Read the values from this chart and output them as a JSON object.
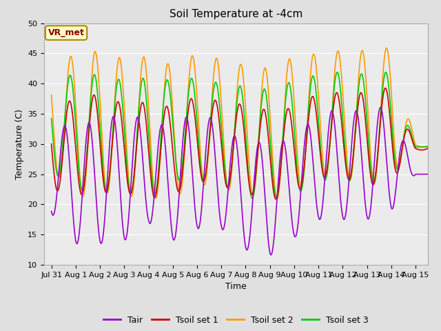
{
  "title": "Soil Temperature at -4cm",
  "xlabel": "Time",
  "ylabel": "Temperature (C)",
  "ylim": [
    10,
    50
  ],
  "annotation_text": "VR_met",
  "fig_bg_color": "#e0e0e0",
  "plot_bg_color": "#ebebeb",
  "grid_color": "white",
  "series": {
    "Tair": {
      "color": "#9900cc",
      "linewidth": 1.2
    },
    "Tsoil set 1": {
      "color": "#cc0000",
      "linewidth": 1.2
    },
    "Tsoil set 2": {
      "color": "#ff9900",
      "linewidth": 1.2
    },
    "Tsoil set 3": {
      "color": "#00cc00",
      "linewidth": 1.2
    }
  },
  "x_tick_labels": [
    "Jul 31",
    "Aug 1",
    "Aug 2",
    "Aug 3",
    "Aug 4",
    "Aug 5",
    "Aug 6",
    "Aug 7",
    "Aug 8",
    "Aug 9",
    "Aug 10",
    "Aug 11",
    "Aug 12",
    "Aug 13",
    "Aug 14",
    "Aug 15"
  ],
  "x_tick_positions": [
    0,
    1,
    2,
    3,
    4,
    5,
    6,
    7,
    8,
    9,
    10,
    11,
    12,
    13,
    14,
    15
  ],
  "tair_min": [
    18.5,
    13.5,
    13.5,
    14.0,
    17.0,
    14.0,
    16.0,
    16.0,
    12.5,
    11.5,
    14.5,
    17.5,
    17.5,
    17.5,
    19.0,
    25.0
  ],
  "tair_max": [
    33.0,
    33.0,
    34.0,
    35.0,
    34.0,
    32.5,
    36.0,
    33.0,
    30.0,
    30.5,
    30.5,
    35.5,
    35.5,
    35.5,
    36.5,
    25.0
  ],
  "tsoil1_min": [
    22.5,
    21.5,
    22.0,
    22.0,
    21.0,
    21.5,
    24.0,
    23.0,
    22.0,
    20.5,
    22.0,
    24.5,
    24.5,
    23.0,
    24.0,
    29.0
  ],
  "tsoil1_max": [
    37.5,
    37.0,
    38.5,
    36.5,
    37.0,
    36.0,
    38.0,
    37.0,
    36.5,
    35.5,
    36.0,
    38.5,
    38.5,
    38.5,
    39.5,
    29.5
  ],
  "tsoil2_min": [
    26.0,
    21.0,
    22.0,
    21.5,
    21.0,
    21.0,
    23.5,
    22.5,
    22.0,
    20.5,
    22.0,
    24.5,
    24.5,
    23.0,
    24.5,
    29.5
  ],
  "tsoil2_max": [
    44.5,
    44.5,
    45.5,
    44.0,
    44.5,
    43.0,
    45.0,
    44.0,
    43.0,
    42.5,
    44.5,
    45.0,
    45.5,
    45.5,
    46.0,
    30.0
  ],
  "tsoil3_min": [
    25.5,
    22.5,
    22.0,
    22.0,
    21.0,
    24.0,
    24.0,
    23.5,
    21.0,
    21.0,
    21.5,
    24.0,
    24.0,
    23.5,
    24.5,
    29.5
  ],
  "tsoil3_max": [
    41.0,
    41.5,
    41.5,
    40.5,
    41.0,
    40.5,
    41.0,
    40.0,
    39.5,
    39.0,
    40.5,
    41.5,
    42.0,
    41.5,
    42.0,
    29.5
  ],
  "tair_phase": 0.3,
  "tsoil1_phase": 0.5,
  "tsoil2_phase": 0.55,
  "tsoil3_phase": 0.52
}
